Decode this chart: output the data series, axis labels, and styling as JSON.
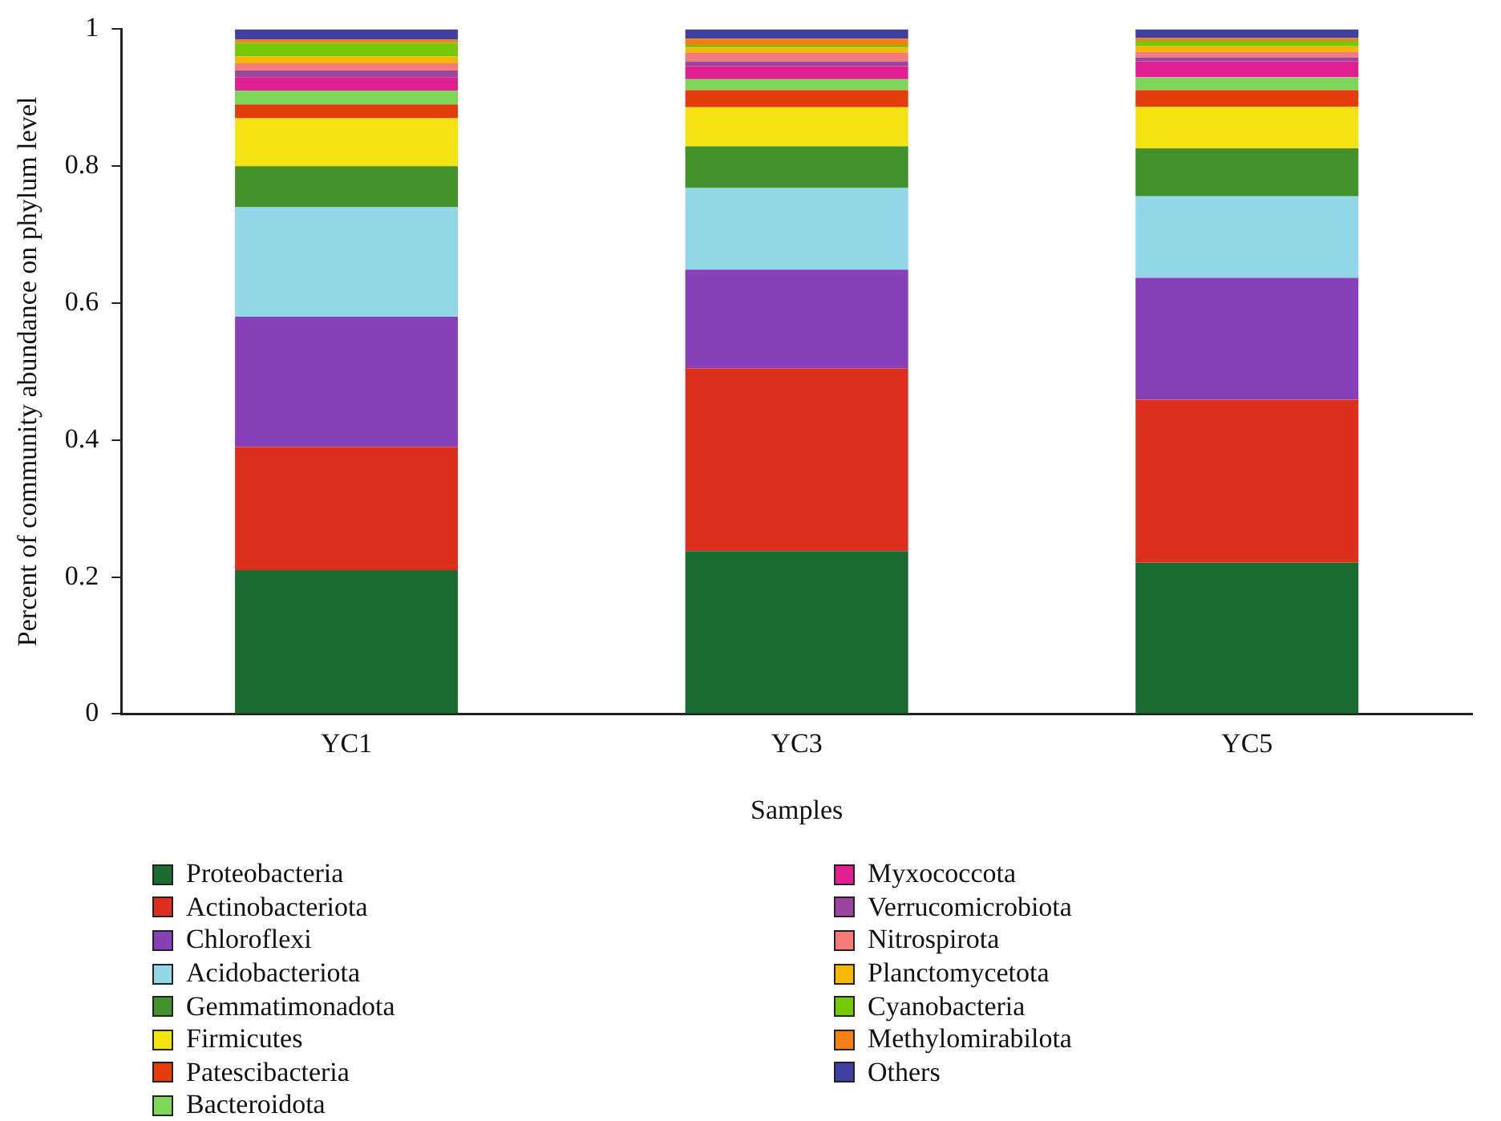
{
  "chart_data": {
    "type": "bar",
    "stacked": true,
    "xlabel": "Samples",
    "ylabel": "Percent of community abundance on phylum level",
    "categories": [
      "YC1",
      "YC3",
      "YC5"
    ],
    "ylim": [
      0,
      1
    ],
    "yticks": [
      0,
      0.2,
      0.4,
      0.6,
      0.8,
      1
    ],
    "grid": false,
    "legend": "bottom",
    "series": [
      {
        "name": "Proteobacteria",
        "color": "#1a6b30",
        "values": [
          0.21,
          0.238,
          0.221
        ]
      },
      {
        "name": "Actinobacteriota",
        "color": "#dc2f1e",
        "values": [
          0.18,
          0.267,
          0.238
        ]
      },
      {
        "name": "Chloroflexi",
        "color": "#8640b8",
        "values": [
          0.19,
          0.144,
          0.178
        ]
      },
      {
        "name": "Acidobacteriota",
        "color": "#93d8e8",
        "values": [
          0.16,
          0.119,
          0.119
        ]
      },
      {
        "name": "Gemmatimonadota",
        "color": "#43912a",
        "values": [
          0.06,
          0.061,
          0.07
        ]
      },
      {
        "name": "Firmicutes",
        "color": "#f5e212",
        "values": [
          0.07,
          0.057,
          0.061
        ]
      },
      {
        "name": "Patescibacteria",
        "color": "#e33d0c",
        "values": [
          0.02,
          0.025,
          0.024
        ]
      },
      {
        "name": "Bacteroidota",
        "color": "#7dd65a",
        "values": [
          0.02,
          0.016,
          0.019
        ]
      },
      {
        "name": "Myxococcota",
        "color": "#e02090",
        "values": [
          0.02,
          0.019,
          0.023
        ]
      },
      {
        "name": "Verrucomicrobiota",
        "color": "#9b45a0",
        "values": [
          0.01,
          0.007,
          0.006
        ]
      },
      {
        "name": "Nitrospirota",
        "color": "#f57a7a",
        "values": [
          0.01,
          0.013,
          0.008
        ]
      },
      {
        "name": "Planctomycetota",
        "color": "#f5b800",
        "values": [
          0.01,
          0.007,
          0.008
        ]
      },
      {
        "name": "Cyanobacteria",
        "color": "#78c80a",
        "values": [
          0.02,
          0.004,
          0.008
        ]
      },
      {
        "name": "Methylomirabilota",
        "color": "#f57f17",
        "values": [
          0.005,
          0.009,
          0.004
        ]
      },
      {
        "name": "Others",
        "color": "#3f40a0",
        "values": [
          0.015,
          0.014,
          0.013
        ]
      }
    ]
  }
}
